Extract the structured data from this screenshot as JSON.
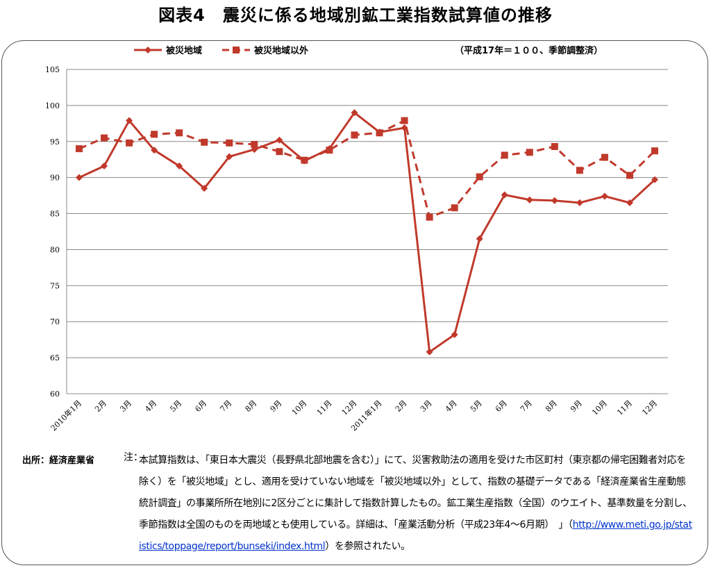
{
  "title": "図表4　震災に係る地域別鉱工業指数試算値の推移",
  "unit_note": "（平成17年＝１００、季節調整済）",
  "source": "出所：経済産業省",
  "note": {
    "label": "注：",
    "text_before": "本試算指数は、「東日本大震災（長野県北部地震を含む）」にて、災害救助法の適用を受けた市区町村（東京都の帰宅困難者対応を除く）を「被災地域」とし、適用を受けていない地域を「被災地域以外」として、指数の基礎データである「経済産業省生産動態統計調査」の事業所所在地別に2区分ごとに集計して指数計算したもの。鉱工業生産指数（全国）のウエイト、基準数量を分割し、季節指数は全国のものを両地域とも使用している。詳細は、「産業活動分析（平成23年4～6月期）　」（",
    "link": "http://www.meti.go.jp/statistics/toppage/report/bunseki/index.html",
    "text_after": "）を参照されたい。"
  },
  "chart_data": {
    "type": "line",
    "title": "",
    "xlabel": "",
    "ylabel": "",
    "ylim": [
      60,
      105
    ],
    "yticks": [
      60,
      65,
      70,
      75,
      80,
      85,
      90,
      95,
      100,
      105
    ],
    "grid": true,
    "legend_position": "top-left",
    "categories": [
      "2010年1月",
      "2月",
      "3月",
      "4月",
      "5月",
      "6月",
      "7月",
      "8月",
      "9月",
      "10月",
      "11月",
      "12月",
      "2011年1月",
      "2月",
      "3月",
      "4月",
      "5月",
      "6月",
      "7月",
      "8月",
      "9月",
      "10月",
      "11月",
      "12月"
    ],
    "series": [
      {
        "name": "被災地域",
        "color": "#c0392b",
        "line_style": "solid",
        "marker": "diamond",
        "values": [
          90.0,
          91.6,
          97.9,
          93.8,
          91.6,
          88.5,
          92.9,
          93.9,
          95.2,
          92.3,
          94.0,
          99.0,
          96.3,
          96.9,
          65.8,
          68.2,
          81.5,
          87.6,
          86.9,
          86.8,
          86.5,
          87.4,
          86.5,
          89.7
        ]
      },
      {
        "name": "被災地域以外",
        "color": "#c0392b",
        "line_style": "dashed",
        "marker": "square",
        "values": [
          94.0,
          95.5,
          94.8,
          96.0,
          96.2,
          94.9,
          94.8,
          94.6,
          93.6,
          92.4,
          93.8,
          95.9,
          96.2,
          97.9,
          84.5,
          85.8,
          90.1,
          93.1,
          93.5,
          94.3,
          91.0,
          92.8,
          90.3,
          93.7
        ]
      }
    ]
  }
}
